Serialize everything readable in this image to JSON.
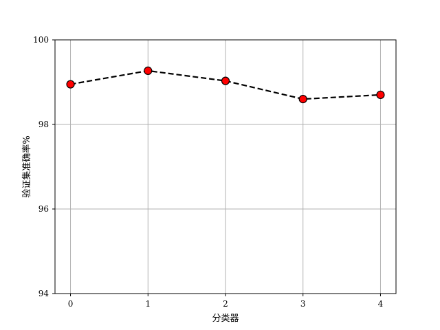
{
  "chart_data": {
    "type": "line",
    "title": "",
    "xlabel": "分类器",
    "ylabel": "验证集准确率%",
    "x": [
      0,
      1,
      2,
      3,
      4
    ],
    "xticks": [
      0,
      1,
      2,
      3,
      4
    ],
    "xlim": [
      -0.2,
      4.2
    ],
    "yticks": [
      94,
      96,
      98,
      100
    ],
    "ylim": [
      94,
      100
    ],
    "grid": true,
    "series": [
      {
        "values": [
          98.95,
          99.27,
          99.03,
          98.6,
          98.7
        ],
        "line_color": "#000000",
        "line_style": "dashed",
        "marker_color": "#ff0000",
        "marker_edge_color": "#000000"
      }
    ]
  }
}
